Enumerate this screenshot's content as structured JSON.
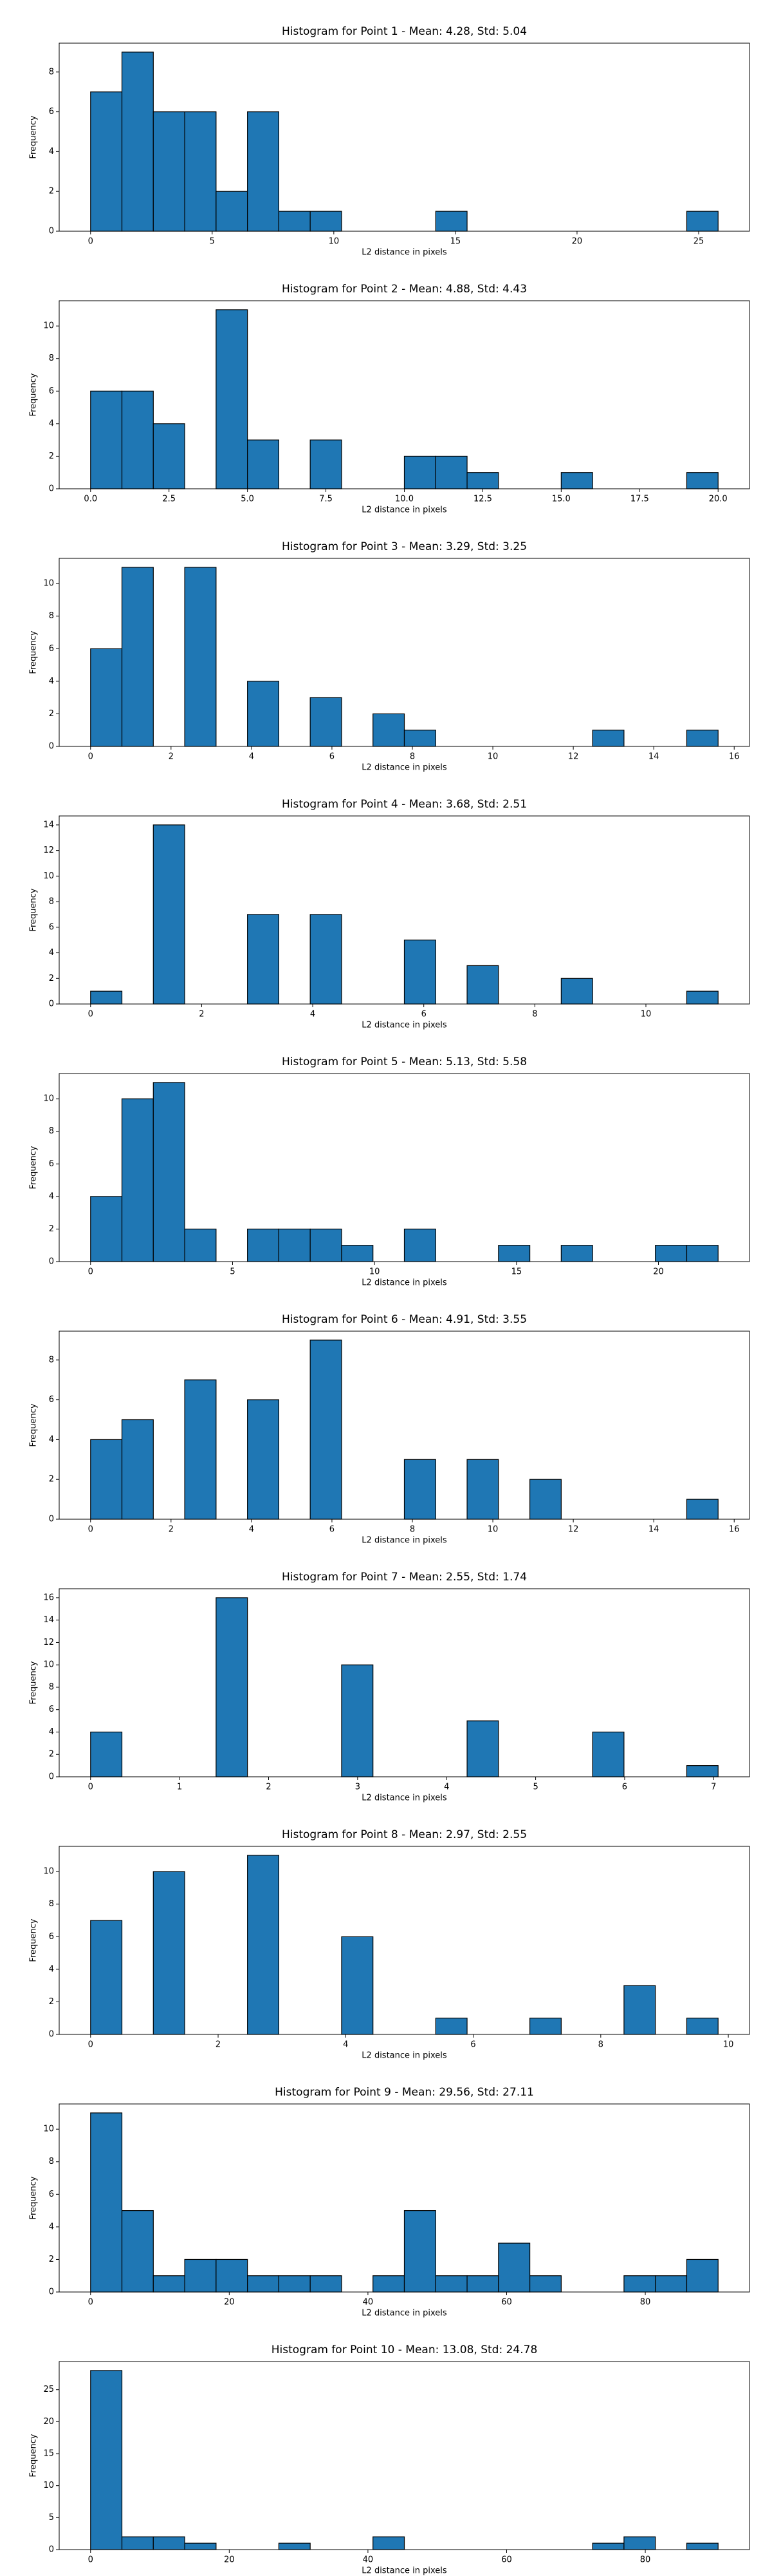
{
  "chart_data": [
    {
      "type": "histogram",
      "title": "Histogram for Point 1 - Mean: 4.28, Std: 5.04",
      "xlabel": "L2 distance in pixels",
      "ylabel": "Frequency",
      "color": "#1f77b4",
      "bins": [
        0,
        1.29,
        2.58,
        3.87,
        5.16,
        6.45,
        7.74,
        9.03,
        10.32,
        11.61,
        12.9,
        14.19,
        15.48,
        16.77,
        18.06,
        19.35,
        20.64,
        21.93,
        23.22,
        24.51,
        25.8
      ],
      "values": [
        7,
        9,
        6,
        6,
        2,
        6,
        1,
        1,
        0,
        0,
        0,
        1,
        0,
        0,
        0,
        0,
        0,
        0,
        0,
        1
      ],
      "xlim": [
        -1.29,
        27.09
      ],
      "xticks": [
        0,
        5,
        10,
        15,
        20,
        25
      ],
      "ylim": [
        0,
        9.45
      ],
      "yticks": [
        0,
        2,
        4,
        6,
        8
      ]
    },
    {
      "type": "histogram",
      "title": "Histogram for Point 2 - Mean: 4.88, Std: 4.43",
      "xlabel": "L2 distance in pixels",
      "ylabel": "Frequency",
      "color": "#1f77b4",
      "bins": [
        0,
        1,
        2,
        3,
        4,
        5,
        6,
        7,
        8,
        9,
        10,
        11,
        12,
        13,
        14,
        15,
        16,
        17,
        18,
        19,
        20
      ],
      "values": [
        6,
        6,
        4,
        0,
        11,
        3,
        0,
        3,
        0,
        0,
        2,
        2,
        1,
        0,
        0,
        1,
        0,
        0,
        0,
        1
      ],
      "xlim": [
        -1,
        21
      ],
      "xticks": [
        {
          "value": 0,
          "label": "0.0"
        },
        {
          "value": 2.5,
          "label": "2.5"
        },
        {
          "value": 5,
          "label": "5.0"
        },
        {
          "value": 7.5,
          "label": "7.5"
        },
        {
          "value": 10,
          "label": "10.0"
        },
        {
          "value": 12.5,
          "label": "12.5"
        },
        {
          "value": 15,
          "label": "15.0"
        },
        {
          "value": 17.5,
          "label": "17.5"
        },
        {
          "value": 20,
          "label": "20.0"
        }
      ],
      "ylim": [
        0,
        11.55
      ],
      "yticks": [
        0,
        2,
        4,
        6,
        8,
        10
      ]
    },
    {
      "type": "histogram",
      "title": "Histogram for Point 3 - Mean: 3.29, Std: 3.25",
      "xlabel": "L2 distance in pixels",
      "ylabel": "Frequency",
      "color": "#1f77b4",
      "bins": [
        0,
        0.78,
        1.56,
        2.34,
        3.12,
        3.9,
        4.68,
        5.46,
        6.24,
        7.02,
        7.8,
        8.58,
        9.36,
        10.14,
        10.92,
        11.7,
        12.48,
        13.26,
        14.04,
        14.82,
        15.6
      ],
      "values": [
        6,
        11,
        0,
        11,
        0,
        4,
        0,
        3,
        0,
        2,
        1,
        0,
        0,
        0,
        0,
        0,
        1,
        0,
        0,
        1
      ],
      "xlim": [
        -0.78,
        16.38
      ],
      "xticks": [
        0,
        2,
        4,
        6,
        8,
        10,
        12,
        14,
        16
      ],
      "ylim": [
        0,
        11.55
      ],
      "yticks": [
        0,
        2,
        4,
        6,
        8,
        10
      ]
    },
    {
      "type": "histogram",
      "title": "Histogram for Point 4 - Mean: 3.68, Std: 2.51",
      "xlabel": "L2 distance in pixels",
      "ylabel": "Frequency",
      "color": "#1f77b4",
      "bins": [
        0,
        0.565,
        1.13,
        1.695,
        2.26,
        2.825,
        3.39,
        3.955,
        4.52,
        5.085,
        5.65,
        6.215,
        6.78,
        7.345,
        7.91,
        8.475,
        9.04,
        9.605,
        10.17,
        10.735,
        11.3
      ],
      "values": [
        1,
        0,
        14,
        0,
        0,
        7,
        0,
        7,
        0,
        0,
        5,
        0,
        3,
        0,
        0,
        2,
        0,
        0,
        0,
        1
      ],
      "xlim": [
        -0.565,
        11.865
      ],
      "xticks": [
        0,
        2,
        4,
        6,
        8,
        10
      ],
      "ylim": [
        0,
        14.7
      ],
      "yticks": [
        0,
        2,
        4,
        6,
        8,
        10,
        12,
        14
      ]
    },
    {
      "type": "histogram",
      "title": "Histogram for Point 5 - Mean: 5.13, Std: 5.58",
      "xlabel": "L2 distance in pixels",
      "ylabel": "Frequency",
      "color": "#1f77b4",
      "bins": [
        0,
        1.105,
        2.21,
        3.315,
        4.42,
        5.525,
        6.63,
        7.735,
        8.84,
        9.945,
        11.05,
        12.155,
        13.26,
        14.365,
        15.47,
        16.575,
        17.68,
        18.785,
        19.89,
        20.995,
        22.1
      ],
      "values": [
        4,
        10,
        11,
        2,
        0,
        2,
        2,
        2,
        1,
        0,
        2,
        0,
        0,
        1,
        0,
        1,
        0,
        0,
        1,
        1
      ],
      "xlim": [
        -1.105,
        23.205
      ],
      "xticks": [
        0,
        5,
        10,
        15,
        20
      ],
      "ylim": [
        0,
        11.55
      ],
      "yticks": [
        0,
        2,
        4,
        6,
        8,
        10
      ]
    },
    {
      "type": "histogram",
      "title": "Histogram for Point 6 - Mean: 4.91, Std: 3.55",
      "xlabel": "L2 distance in pixels",
      "ylabel": "Frequency",
      "color": "#1f77b4",
      "bins": [
        0,
        0.78,
        1.56,
        2.34,
        3.12,
        3.9,
        4.68,
        5.46,
        6.24,
        7.02,
        7.8,
        8.58,
        9.36,
        10.14,
        10.92,
        11.7,
        12.48,
        13.26,
        14.04,
        14.82,
        15.6
      ],
      "values": [
        4,
        5,
        0,
        7,
        0,
        6,
        0,
        9,
        0,
        0,
        3,
        0,
        3,
        0,
        2,
        0,
        0,
        0,
        0,
        1
      ],
      "xlim": [
        -0.78,
        16.38
      ],
      "xticks": [
        0,
        2,
        4,
        6,
        8,
        10,
        12,
        14,
        16
      ],
      "ylim": [
        0,
        9.45
      ],
      "yticks": [
        0,
        2,
        4,
        6,
        8
      ]
    },
    {
      "type": "histogram",
      "title": "Histogram for Point 7 - Mean: 2.55, Std: 1.74",
      "xlabel": "L2 distance in pixels",
      "ylabel": "Frequency",
      "color": "#1f77b4",
      "bins": [
        0,
        0.3525,
        0.705,
        1.0575,
        1.41,
        1.7625,
        2.115,
        2.4675,
        2.82,
        3.1725,
        3.525,
        3.8775,
        4.23,
        4.5825,
        4.935,
        5.2875,
        5.64,
        5.9925,
        6.345,
        6.6975,
        7.05
      ],
      "values": [
        4,
        0,
        0,
        0,
        16,
        0,
        0,
        0,
        10,
        0,
        0,
        0,
        5,
        0,
        0,
        0,
        4,
        0,
        0,
        1
      ],
      "xlim": [
        -0.3525,
        7.4025
      ],
      "xticks": [
        0,
        1,
        2,
        3,
        4,
        5,
        6,
        7
      ],
      "ylim": [
        0,
        16.8
      ],
      "yticks": [
        0,
        2,
        4,
        6,
        8,
        10,
        12,
        14,
        16
      ]
    },
    {
      "type": "histogram",
      "title": "Histogram for Point 8 - Mean: 2.97, Std: 2.55",
      "xlabel": "L2 distance in pixels",
      "ylabel": "Frequency",
      "color": "#1f77b4",
      "bins": [
        0,
        0.492,
        0.984,
        1.476,
        1.968,
        2.46,
        2.952,
        3.444,
        3.936,
        4.428,
        4.92,
        5.412,
        5.904,
        6.396,
        6.888,
        7.38,
        7.872,
        8.364,
        8.856,
        9.348,
        9.84
      ],
      "values": [
        7,
        0,
        10,
        0,
        0,
        11,
        0,
        0,
        6,
        0,
        0,
        1,
        0,
        0,
        1,
        0,
        0,
        3,
        0,
        1
      ],
      "xlim": [
        -0.492,
        10.332
      ],
      "xticks": [
        0,
        2,
        4,
        6,
        8,
        10
      ],
      "ylim": [
        0,
        11.55
      ],
      "yticks": [
        0,
        2,
        4,
        6,
        8,
        10
      ]
    },
    {
      "type": "histogram",
      "title": "Histogram for Point 9 - Mean: 29.56, Std: 27.11",
      "xlabel": "L2 distance in pixels",
      "ylabel": "Frequency",
      "color": "#1f77b4",
      "bins": [
        0,
        4.525,
        9.05,
        13.575,
        18.1,
        22.625,
        27.15,
        31.675,
        36.2,
        40.725,
        45.25,
        49.775,
        54.3,
        58.825,
        63.35,
        67.875,
        72.4,
        76.925,
        81.45,
        85.975,
        90.5
      ],
      "values": [
        11,
        5,
        1,
        2,
        2,
        1,
        1,
        1,
        0,
        1,
        5,
        1,
        1,
        3,
        1,
        0,
        0,
        1,
        1,
        2
      ],
      "xlim": [
        -4.525,
        95.025
      ],
      "xticks": [
        0,
        20,
        40,
        60,
        80
      ],
      "ylim": [
        0,
        11.55
      ],
      "yticks": [
        0,
        2,
        4,
        6,
        8,
        10
      ]
    },
    {
      "type": "histogram",
      "title": "Histogram for Point 10 - Mean: 13.08, Std: 24.78",
      "xlabel": "L2 distance in pixels",
      "ylabel": "Frequency",
      "color": "#1f77b4",
      "bins": [
        0,
        4.525,
        9.05,
        13.575,
        18.1,
        22.625,
        27.15,
        31.675,
        36.2,
        40.725,
        45.25,
        49.775,
        54.3,
        58.825,
        63.35,
        67.875,
        72.4,
        76.925,
        81.45,
        85.975,
        90.5
      ],
      "values": [
        28,
        2,
        2,
        1,
        0,
        0,
        1,
        0,
        0,
        2,
        0,
        0,
        0,
        0,
        0,
        0,
        1,
        2,
        0,
        1
      ],
      "xlim": [
        -4.525,
        95.025
      ],
      "xticks": [
        0,
        20,
        40,
        60,
        80
      ],
      "ylim": [
        0,
        29.4
      ],
      "yticks": [
        0,
        5,
        10,
        15,
        20,
        25
      ]
    }
  ]
}
